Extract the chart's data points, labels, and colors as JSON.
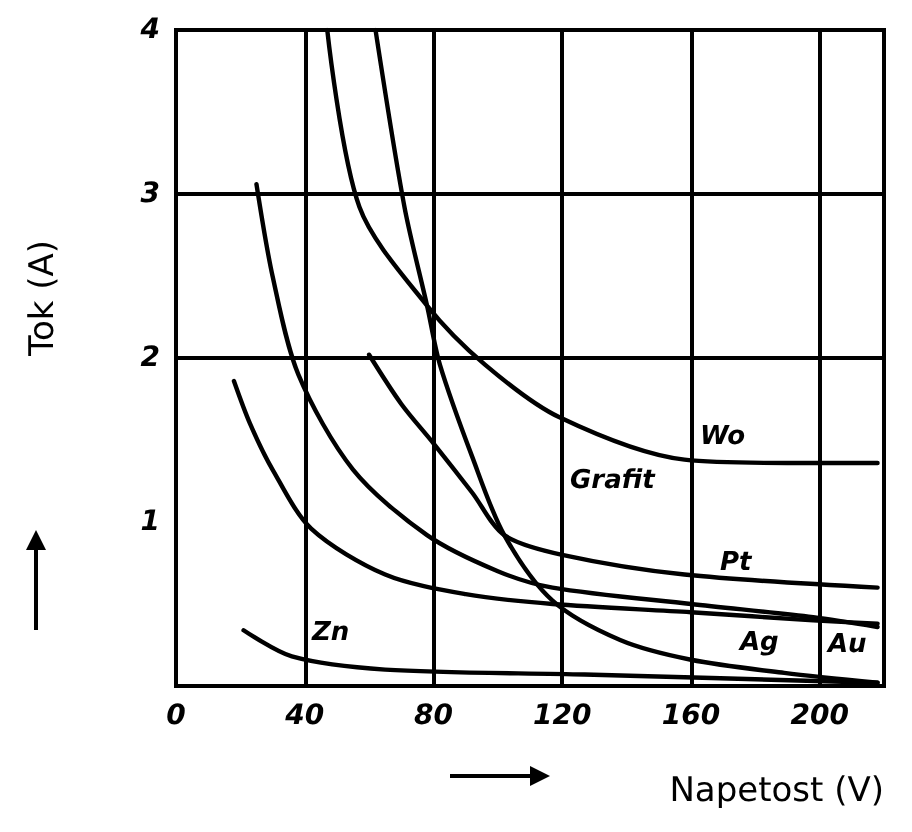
{
  "chart_data": {
    "type": "line",
    "xlabel": "Napetost (V)",
    "ylabel": "Tok (A)",
    "xlim": [
      0,
      220
    ],
    "ylim": [
      0,
      4
    ],
    "xticks": [
      0,
      40,
      80,
      120,
      160,
      200
    ],
    "yticks": [
      1,
      2,
      3,
      4
    ],
    "grid": true,
    "marker": "none",
    "line_style": "solid",
    "series": [
      {
        "color": "#000000",
        "x": [
          47,
          57,
          78,
          96,
          119,
          158,
          190,
          218
        ],
        "values": [
          4,
          2.92,
          2.32,
          1.96,
          1.64,
          1.38,
          1.36,
          1.36
        ]
      },
      {
        "color": "#000000",
        "x": [
          62,
          71,
          78,
          82,
          92,
          102,
          117,
          138,
          160,
          189,
          218
        ],
        "values": [
          4,
          2.92,
          2.32,
          1.96,
          1.4,
          0.92,
          0.52,
          0.28,
          0.16,
          0.08,
          0.02
        ]
      },
      {
        "color": "#000000",
        "x": [
          60,
          70,
          80,
          92,
          102,
          120,
          158,
          218
        ],
        "values": [
          2.02,
          1.72,
          1.48,
          1.18,
          0.92,
          0.8,
          0.68,
          0.6
        ]
      },
      {
        "color": "#000000",
        "x": [
          25,
          30,
          38,
          55,
          78,
          100,
          117,
          160,
          198,
          218
        ],
        "values": [
          3.06,
          2.5,
          1.9,
          1.32,
          0.92,
          0.7,
          0.6,
          0.5,
          0.42,
          0.36
        ]
      },
      {
        "color": "#000000",
        "x": [
          18,
          23,
          30,
          42,
          65,
          90,
          117,
          160,
          198,
          218
        ],
        "values": [
          1.86,
          1.6,
          1.32,
          0.96,
          0.68,
          0.56,
          0.5,
          0.45,
          0.4,
          0.38
        ]
      },
      {
        "color": "#000000",
        "x": [
          21,
          36,
          65,
          127,
          218
        ],
        "values": [
          0.34,
          0.18,
          0.1,
          0.07,
          0.02
        ]
      }
    ],
    "annotations": [
      "Wo",
      "Grafit",
      "Pt",
      "Au",
      "Ag",
      "Zn"
    ]
  }
}
